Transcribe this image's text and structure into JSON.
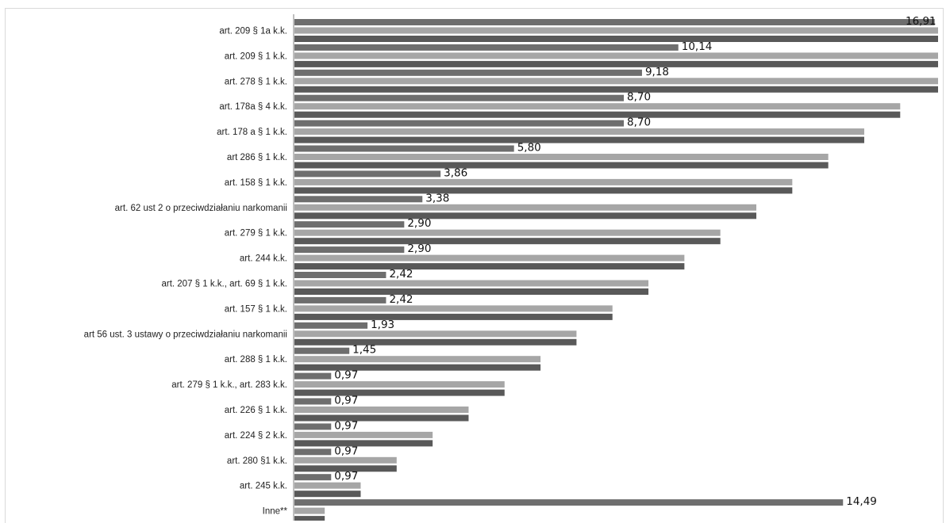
{
  "chart_data": {
    "type": "bar",
    "orientation": "horizontal",
    "categories": [
      "art. 209 § 1a k.k.",
      "art. 209 § 1 k.k.",
      "art. 278 § 1 k.k.",
      "art. 178a § 4 k.k.",
      "art. 178 a § 1 k.k.",
      "art 286 § 1 k.k.",
      "art. 158 § 1 k.k.",
      "art. 62 ust 2 o przeciwdziałaniu narkomanii",
      "art. 279 § 1 k.k.",
      "art. 244 k.k.",
      "art. 207 § 1 k.k., art. 69 § 1 k.k.",
      "art. 157 § 1 k.k.",
      "art 56 ust. 3 ustawy o przeciwdziałaniu narkomanii",
      "art. 288 § 1 k.k.",
      "art. 279 § 1 k.k., art. 283 k.k.",
      "art. 226 § 1 k.k.",
      "art. 224 § 2 k.k.",
      "art. 280 §1 k.k.",
      "art. 245 k.k.",
      "Inne**"
    ],
    "series": [
      {
        "color": "#6e6e6e",
        "values": [
          16.91,
          10.14,
          9.18,
          8.7,
          8.7,
          5.8,
          3.86,
          3.38,
          2.9,
          2.9,
          2.42,
          2.42,
          1.93,
          1.45,
          0.97,
          0.97,
          0.97,
          0.97,
          0.97,
          14.49
        ],
        "labels": [
          "16,91",
          "10,14",
          "9,18",
          "8,70",
          "8,70",
          "5,80",
          "3,86",
          "3,38",
          "2,90",
          "2,90",
          "2,42",
          "2,42",
          "1,93",
          "1,45",
          "0,97",
          "0,97",
          "0,97",
          "0,97",
          "0,97",
          "14,49"
        ]
      },
      {
        "color": "#a6a6a6",
        "values": [
          17.0,
          17.0,
          17.0,
          16.0,
          15.05,
          14.1,
          13.15,
          12.2,
          11.25,
          10.3,
          9.35,
          8.4,
          7.45,
          6.5,
          5.55,
          4.6,
          3.65,
          2.7,
          1.75,
          0.8
        ]
      },
      {
        "color": "#595959",
        "values": [
          17.0,
          17.0,
          17.0,
          16.0,
          15.05,
          14.1,
          13.15,
          12.2,
          11.25,
          10.3,
          9.35,
          8.4,
          7.45,
          6.5,
          5.55,
          4.6,
          3.65,
          2.7,
          1.75,
          0.8
        ]
      }
    ],
    "xlim": [
      0,
      17.0
    ],
    "legend": "none",
    "grid": false
  }
}
